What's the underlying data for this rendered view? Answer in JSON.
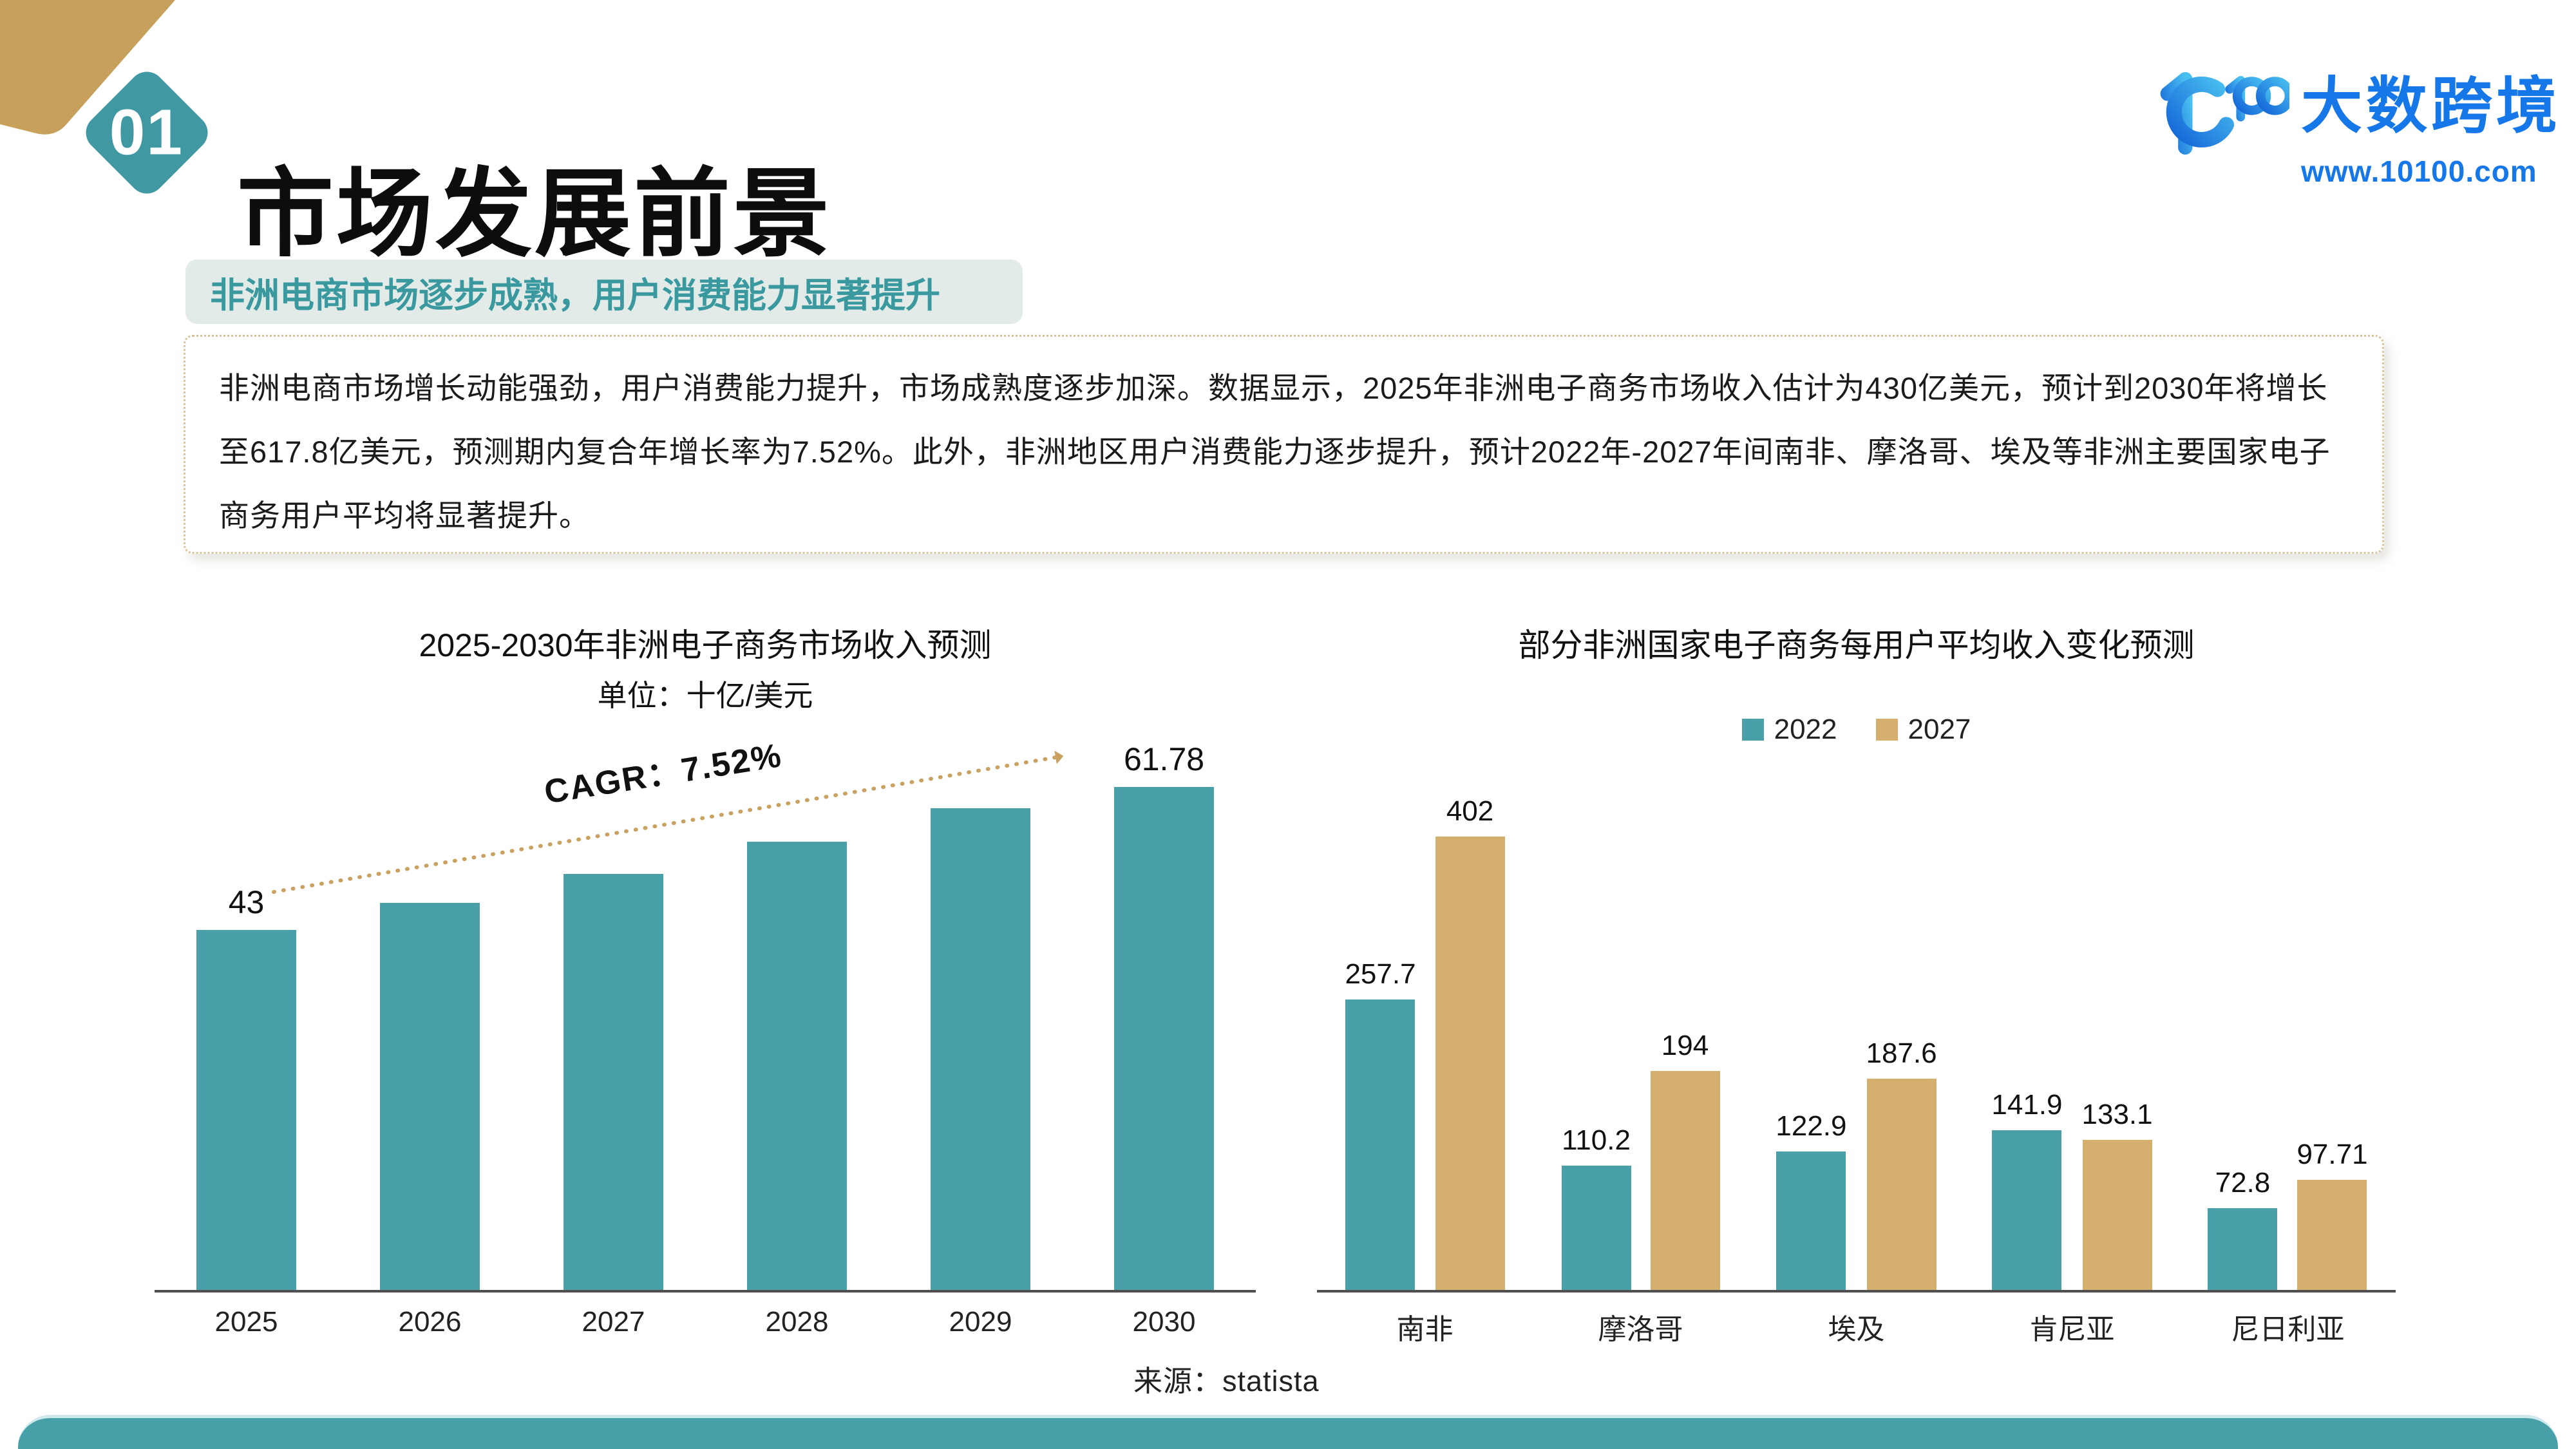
{
  "header": {
    "section_number": "01",
    "title": "市场发展前景",
    "logo": {
      "brand": "大数跨境",
      "url": "www.10100.com"
    }
  },
  "banner": {
    "text": "非洲电商市场逐步成熟，用户消费能力显著提升"
  },
  "summary": {
    "text": "非洲电商市场增长动能强劲，用户消费能力提升，市场成熟度逐步加深。数据显示，2025年非洲电子商务市场收入估计为430亿美元，预计到2030年将增长至617.8亿美元，预测期内复合年增长率为7.52%。此外，非洲地区用户消费能力逐步提升，预计2022年-2027年间南非、摩洛哥、埃及等非洲主要国家电子商务用户平均将显著提升。"
  },
  "source": {
    "label": "来源：statista"
  },
  "colors": {
    "teal": "#4aa0a9",
    "gold": "#d4af6e",
    "footer": "#47a0a8",
    "diamond": "#3f98a2",
    "banner_bg": "#e3ebe8",
    "banner_text": "#39999f",
    "logo_blue": "#1677e8",
    "arrow_gold": "#c9a262",
    "wedge_gold": "#c7a15c"
  },
  "chart_data": [
    {
      "type": "bar",
      "title": "2025-2030年非洲电子商务市场收入预测",
      "subtitle": "单位：十亿/美元",
      "categories": [
        "2025",
        "2026",
        "2027",
        "2028",
        "2029",
        "2030"
      ],
      "values": [
        43,
        46.2,
        49.7,
        53.5,
        57.5,
        61.78
      ],
      "value_labels": [
        "43",
        "",
        "",
        "",
        "",
        "61.78"
      ],
      "annotation": "CAGR：7.52%",
      "bar_color": "#4aa0a9",
      "ylim": [
        0,
        65
      ],
      "grid": false,
      "legend_position": "none"
    },
    {
      "type": "bar",
      "title": "部分非洲国家电子商务每用户平均收入变化预测",
      "categories": [
        "南非",
        "摩洛哥",
        "埃及",
        "肯尼亚",
        "尼日利亚"
      ],
      "series": [
        {
          "name": "2022",
          "color": "#4aa0a9",
          "values": [
            257.7,
            110.2,
            122.9,
            141.9,
            72.8
          ],
          "value_labels": [
            "257.7",
            "110.2",
            "122.9",
            "141.9",
            "72.8"
          ]
        },
        {
          "name": "2027",
          "color": "#d4af6e",
          "values": [
            402,
            194,
            187.6,
            133.1,
            97.71
          ],
          "value_labels": [
            "402",
            "194",
            "187.6",
            "133.1",
            "97.71"
          ]
        }
      ],
      "ylim": [
        0,
        420
      ],
      "grid": false,
      "legend_position": "top"
    }
  ]
}
